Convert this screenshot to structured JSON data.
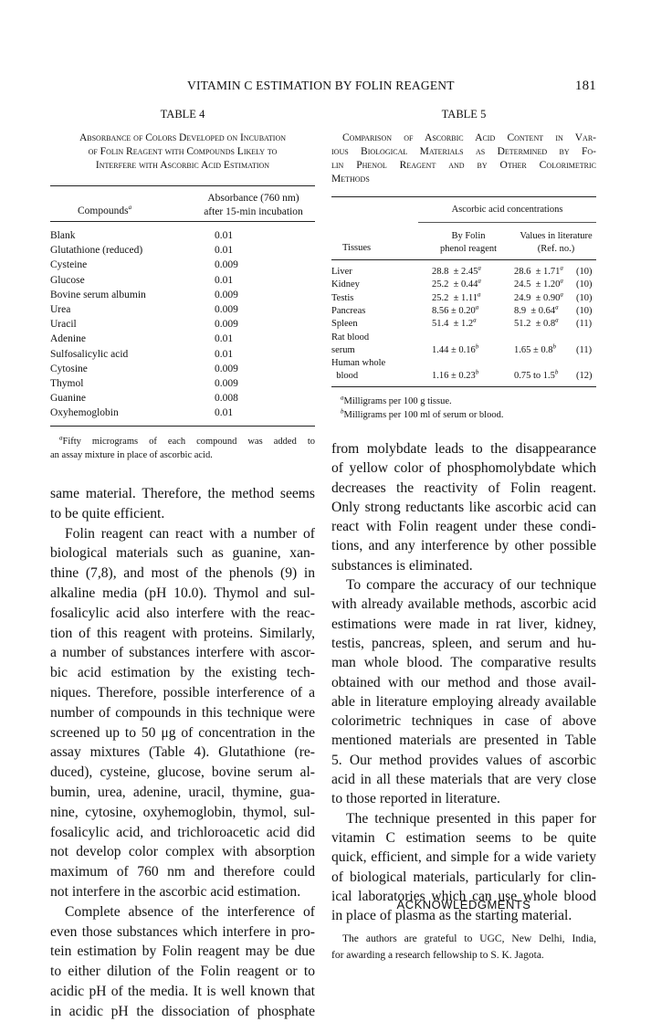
{
  "header": {
    "running_title": "VITAMIN C ESTIMATION BY FOLIN REAGENT",
    "page_number": "181"
  },
  "table4": {
    "label": "TABLE 4",
    "caption": [
      "Absorbance of Colors Developed on Incubation",
      "of Folin Reagent with Compounds Likely to",
      "Interfere with Ascorbic Acid Estimation"
    ],
    "col1_header": "Compounds",
    "col1_sup": "a",
    "col2_header": [
      "Absorbance (760 nm)",
      "after 15-min incubation"
    ],
    "rows": [
      {
        "compound": "Blank",
        "absorbance": "0.01"
      },
      {
        "compound": "Glutathione (reduced)",
        "absorbance": "0.01"
      },
      {
        "compound": "Cysteine",
        "absorbance": "0.009"
      },
      {
        "compound": "Glucose",
        "absorbance": "0.01"
      },
      {
        "compound": "Bovine serum albumin",
        "absorbance": "0.009"
      },
      {
        "compound": "Urea",
        "absorbance": "0.009"
      },
      {
        "compound": "Uracil",
        "absorbance": "0.009"
      },
      {
        "compound": "Adenine",
        "absorbance": "0.01"
      },
      {
        "compound": "Sulfosalicylic acid",
        "absorbance": "0.01"
      },
      {
        "compound": "Cytosine",
        "absorbance": "0.009"
      },
      {
        "compound": "Thymol",
        "absorbance": "0.009"
      },
      {
        "compound": "Guanine",
        "absorbance": "0.008"
      },
      {
        "compound": "Oxyhemoglobin",
        "absorbance": "0.01"
      }
    ],
    "footnote_sup": "a",
    "footnote": [
      "Fifty micrograms of each compound was added to",
      "an assay mixture in place of ascorbic acid."
    ]
  },
  "table5": {
    "label": "TABLE 5",
    "caption": [
      "Comparison of Ascorbic Acid Content in Var-",
      "ious Biological Materials as Determined by Fo-",
      "lin Phenol Reagent and by Other Colorimetric",
      "Methods"
    ],
    "span_header": "Ascorbic acid concentrations",
    "col1_header": "Tissues",
    "col2_header": [
      "By Folin",
      "phenol reagent"
    ],
    "col3_header": [
      "Values in literature",
      "(Ref. no.)"
    ],
    "rows": [
      {
        "tissue": "Liver",
        "folin": "28.8  ± 2.45",
        "folin_sup": "a",
        "lit": "28.6  ± 1.71",
        "lit_sup": "a",
        "ref": "(10)"
      },
      {
        "tissue": "Kidney",
        "folin": "25.2  ± 0.44",
        "folin_sup": "a",
        "lit": "24.5  ± 1.20",
        "lit_sup": "a",
        "ref": "(10)"
      },
      {
        "tissue": "Testis",
        "folin": "25.2  ± 1.11",
        "folin_sup": "a",
        "lit": "24.9  ± 0.90",
        "lit_sup": "a",
        "ref": "(10)"
      },
      {
        "tissue": "Pancreas",
        "folin": "8.56 ± 0.20",
        "folin_sup": "a",
        "lit": "8.9  ± 0.64",
        "lit_sup": "a",
        "ref": "(10)"
      },
      {
        "tissue": "Spleen",
        "folin": "51.4  ± 1.2",
        "folin_sup": "a",
        "lit": "51.2  ± 0.8",
        "lit_sup": "a",
        "ref": "(11)"
      },
      {
        "tissue": "Rat blood",
        "folin": "",
        "folin_sup": "",
        "lit": "",
        "lit_sup": "",
        "ref": ""
      },
      {
        "tissue": "serum",
        "folin": "1.44 ± 0.16",
        "folin_sup": "b",
        "lit": "1.65 ± 0.8",
        "lit_sup": "b",
        "ref": "(11)"
      },
      {
        "tissue": "Human whole",
        "folin": "",
        "folin_sup": "",
        "lit": "",
        "lit_sup": "",
        "ref": ""
      },
      {
        "tissue": "  blood",
        "folin": "1.16 ± 0.23",
        "folin_sup": "b",
        "lit": "0.75 to 1.5",
        "lit_sup": "b",
        "ref": "(12)"
      }
    ],
    "footnotes": [
      {
        "sup": "a",
        "text": "Milligrams per 100 g tissue."
      },
      {
        "sup": "b",
        "text": "Milligrams per 100 ml of serum or blood."
      }
    ]
  },
  "body_left": [
    {
      "indent": false,
      "lines": [
        "same material. Therefore, the method seems",
        "to be quite efficient."
      ]
    },
    {
      "indent": true,
      "lines": [
        "Folin reagent can react with a number of",
        "biological materials such as guanine, xan-",
        "thine (7,8), and most of the phenols (9) in",
        "alkaline media (pH 10.0). Thymol and sul-",
        "fosalicylic acid also interfere with the reac-",
        "tion of this reagent with proteins. Similarly,",
        "a number of substances interfere with ascor-",
        "bic acid estimation by the existing tech-",
        "niques. Therefore, possible interference of a",
        "number of compounds in this technique were",
        "screened up to 50 μg of concentration in the",
        "assay mixtures (Table 4). Glutathione (re-",
        "duced), cysteine, glucose, bovine serum al-",
        "bumin, urea, adenine, uracil, thymine, gua-",
        "nine, cytosine, oxyhemoglobin, thymol, sul-",
        "fosalicylic acid, and trichloroacetic acid did",
        "not develop color complex with absorption",
        "maximum of 760 nm and therefore could",
        "not interfere in the ascorbic acid estimation."
      ]
    },
    {
      "indent": true,
      "lines": [
        "Complete absence of the interference of",
        "even those substances which interfere in pro-",
        "tein estimation by Folin reagent may be due",
        "to either dilution of the Folin reagent or to",
        "acidic pH of the media. It is well known that",
        "in acidic pH the dissociation of phosphate"
      ],
      "continues": true
    }
  ],
  "body_right": [
    {
      "indent": false,
      "lines": [
        "from molybdate leads to the disappearance",
        "of yellow color of phosphomolybdate which",
        "decreases the reactivity of Folin reagent.",
        "Only strong reductants like ascorbic acid can",
        "react with Folin reagent under these condi-",
        "tions, and any interference by other possible",
        "substances is eliminated."
      ]
    },
    {
      "indent": true,
      "lines": [
        "To compare the accuracy of our technique",
        "with already available methods, ascorbic acid",
        "estimations were made in rat liver, kidney,",
        "testis, pancreas, spleen, and serum and hu-",
        "man whole blood. The comparative results",
        "obtained with our method and those avail-",
        "able in literature employing already available",
        "colorimetric techniques in case of above",
        "mentioned materials are presented in Table",
        "5. Our method provides values of ascorbic",
        "acid in all these materials that are very close",
        "to those reported in literature."
      ]
    },
    {
      "indent": true,
      "lines": [
        "The technique presented in this paper for",
        "vitamin C estimation seems to be quite",
        "quick, efficient, and simple for a wide variety",
        "of biological materials, particularly for clin-",
        "ical laboratories which can use whole blood",
        "in place of plasma as the starting material."
      ]
    }
  ],
  "acknowledgments": {
    "heading": "ACKNOWLEDGMENTS",
    "lines": [
      "The authors are grateful to UGC, New Delhi, India,",
      "for awarding a research fellowship to S. K. Jagota."
    ]
  }
}
